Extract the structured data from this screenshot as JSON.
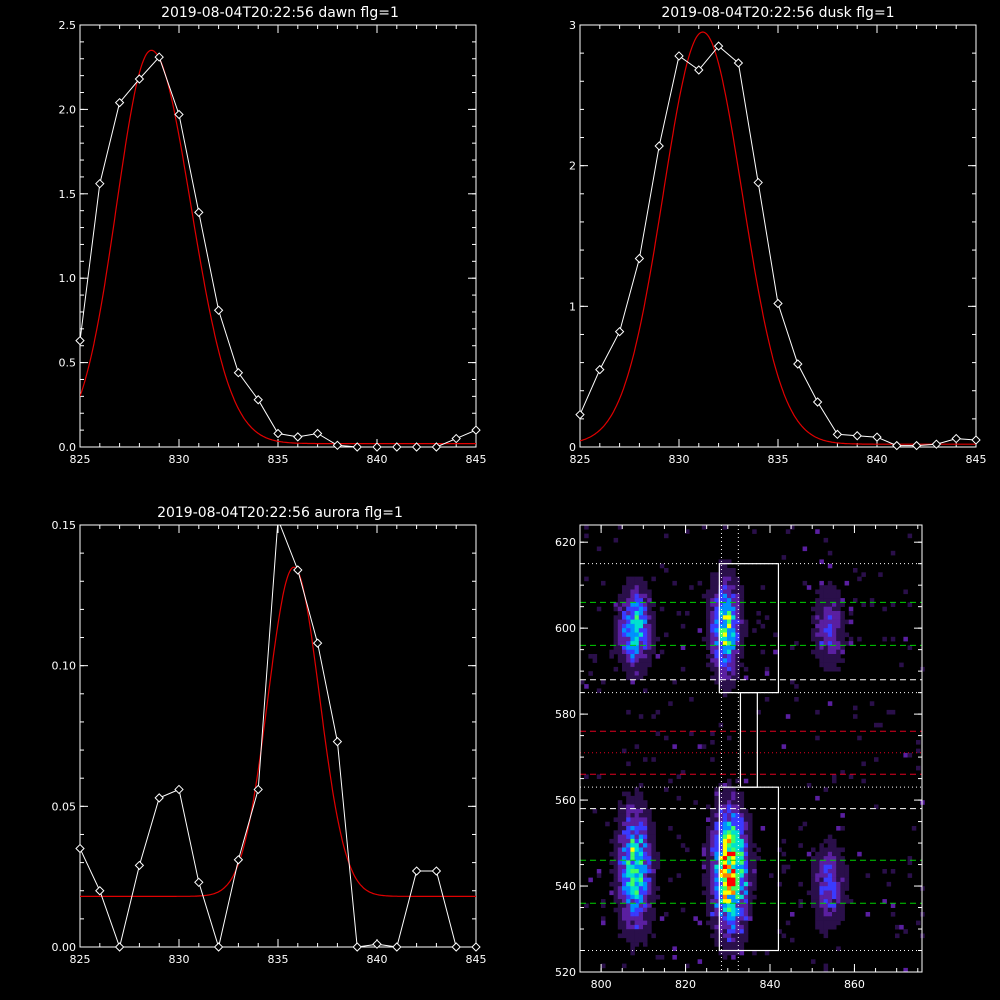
{
  "chart_data": [
    {
      "type": "line",
      "title": "2019-08-04T20:22:56 dawn flg=1",
      "xlim": [
        825,
        845
      ],
      "ylim": [
        0,
        2.5
      ],
      "xticks": [
        825,
        830,
        835,
        840,
        845
      ],
      "xtick_labels": [
        "825",
        "830",
        "835",
        "840",
        "845"
      ],
      "yticks": [
        0,
        0.5,
        1.0,
        1.5,
        2.0,
        2.5
      ],
      "ytick_labels": [
        "0.0",
        "0.5",
        "1.0",
        "1.5",
        "2.0",
        "2.5"
      ],
      "data_series": {
        "x": [
          825,
          826,
          827,
          828,
          829,
          830,
          831,
          832,
          833,
          834,
          835,
          836,
          837,
          838,
          839,
          840,
          841,
          842,
          843,
          844,
          845
        ],
        "y": [
          0.63,
          1.56,
          2.04,
          2.18,
          2.31,
          1.97,
          1.39,
          0.81,
          0.44,
          0.28,
          0.08,
          0.06,
          0.08,
          0.01,
          0.0,
          0.0,
          0.0,
          0.0,
          0.0,
          0.05,
          0.1
        ],
        "color": "#ffffff"
      },
      "fit": {
        "peak": 2.35,
        "center": 828.6,
        "sigma_left": 1.75,
        "sigma_right": 2.0,
        "baseline": 0.02,
        "color": "#e00000"
      }
    },
    {
      "type": "line",
      "title": "2019-08-04T20:22:56 dusk flg=1",
      "xlim": [
        825,
        845
      ],
      "ylim": [
        0,
        3
      ],
      "xticks": [
        825,
        830,
        835,
        840,
        845
      ],
      "xtick_labels": [
        "825",
        "830",
        "835",
        "840",
        "845"
      ],
      "yticks": [
        0,
        1,
        2,
        3
      ],
      "ytick_labels": [
        "0",
        "1",
        "2",
        "3"
      ],
      "data_series": {
        "x": [
          825,
          826,
          827,
          828,
          829,
          830,
          831,
          832,
          833,
          834,
          835,
          836,
          837,
          838,
          839,
          840,
          841,
          842,
          843,
          844,
          845
        ],
        "y": [
          0.23,
          0.55,
          0.82,
          1.34,
          2.14,
          2.78,
          2.68,
          2.85,
          2.73,
          1.88,
          1.02,
          0.59,
          0.32,
          0.09,
          0.08,
          0.07,
          0.01,
          0.01,
          0.02,
          0.06,
          0.05
        ],
        "color": "#ffffff"
      },
      "fit": {
        "peak": 2.95,
        "center": 831.2,
        "sigma_left": 2.0,
        "sigma_right": 2.0,
        "baseline": 0.02,
        "color": "#e00000"
      }
    },
    {
      "type": "line",
      "title": "2019-08-04T20:22:56 aurora flg=1",
      "xlim": [
        825,
        845
      ],
      "ylim": [
        0,
        0.15
      ],
      "xticks": [
        825,
        830,
        835,
        840,
        845
      ],
      "xtick_labels": [
        "825",
        "830",
        "835",
        "840",
        "845"
      ],
      "yticks": [
        0,
        0.05,
        0.1,
        0.15
      ],
      "ytick_labels": [
        "0.00",
        "0.05",
        "0.10",
        "0.15"
      ],
      "data_series": {
        "x": [
          825,
          826,
          827,
          828,
          829,
          830,
          831,
          832,
          833,
          834,
          835,
          836,
          837,
          838,
          839,
          840,
          841,
          842,
          843,
          844,
          845
        ],
        "y": [
          0.035,
          0.02,
          0.0,
          0.029,
          0.053,
          0.056,
          0.023,
          0.0,
          0.031,
          0.056,
          0.152,
          0.134,
          0.108,
          0.073,
          0.0,
          0.001,
          0.0,
          0.027,
          0.027,
          0.0,
          0.0
        ],
        "color": "#ffffff"
      },
      "fit": {
        "peak": 0.135,
        "center": 835.8,
        "sigma_left": 1.3,
        "sigma_right": 1.3,
        "baseline": 0.018,
        "color": "#e00000"
      }
    },
    {
      "type": "heatmap",
      "title": "",
      "xlim": [
        795,
        876
      ],
      "ylim": [
        520,
        624
      ],
      "xticks": [
        800,
        820,
        840,
        860
      ],
      "xtick_labels": [
        "800",
        "820",
        "840",
        "860"
      ],
      "yticks": [
        520,
        540,
        560,
        580,
        600,
        620
      ],
      "ytick_labels": [
        "520",
        "540",
        "560",
        "580",
        "600",
        "620"
      ],
      "colormap": [
        "#000000",
        "#2a0f4a",
        "#5a1fa0",
        "#3a3aff",
        "#0090ff",
        "#00e0d0",
        "#40ff60",
        "#ffff00",
        "#ff8000",
        "#ff0000"
      ],
      "emission_bands": [
        {
          "x": 808,
          "y": 600,
          "sigma_x": 2.4,
          "sigma_y": 6,
          "amp": 0.6
        },
        {
          "x": 808,
          "y": 544,
          "sigma_x": 2.6,
          "sigma_y": 9,
          "amp": 0.62
        },
        {
          "x": 829.5,
          "y": 600,
          "sigma_x": 2.2,
          "sigma_y": 7,
          "amp": 0.72
        },
        {
          "x": 830.5,
          "y": 544,
          "sigma_x": 2.6,
          "sigma_y": 9,
          "amp": 1.0
        },
        {
          "x": 854,
          "y": 600,
          "sigma_x": 2.5,
          "sigma_y": 6,
          "amp": 0.28
        },
        {
          "x": 854,
          "y": 540,
          "sigma_x": 2.5,
          "sigma_y": 6,
          "amp": 0.35
        }
      ],
      "boxes": [
        {
          "x1": 828,
          "x2": 842,
          "y1": 585,
          "y2": 615,
          "color": "#ffffff"
        },
        {
          "x1": 828,
          "x2": 842,
          "y1": 525,
          "y2": 563,
          "color": "#ffffff"
        },
        {
          "x1": 833,
          "x2": 837,
          "y1": 563,
          "y2": 585,
          "color": "#ffffff"
        }
      ],
      "hlines": [
        {
          "y": 615,
          "color": "#ffffff",
          "style": "dotted"
        },
        {
          "y": 606,
          "color": "#00d000",
          "style": "dashed"
        },
        {
          "y": 596,
          "color": "#00d000",
          "style": "dashed"
        },
        {
          "y": 588,
          "color": "#ffffff",
          "style": "dashed"
        },
        {
          "y": 585,
          "color": "#ffffff",
          "style": "dotted"
        },
        {
          "y": 576,
          "color": "#e00020",
          "style": "dashed"
        },
        {
          "y": 571,
          "color": "#e00020",
          "style": "dotted"
        },
        {
          "y": 566,
          "color": "#e00020",
          "style": "dashed"
        },
        {
          "y": 563,
          "color": "#ffffff",
          "style": "dotted"
        },
        {
          "y": 558,
          "color": "#ffffff",
          "style": "dashed"
        },
        {
          "y": 546,
          "color": "#00d000",
          "style": "dashed"
        },
        {
          "y": 536,
          "color": "#00d000",
          "style": "dashed"
        },
        {
          "y": 525,
          "color": "#ffffff",
          "style": "dotted"
        }
      ],
      "vlines": [
        {
          "x": 828.5,
          "color": "#ffffff",
          "style": "dotted"
        },
        {
          "x": 832.5,
          "color": "#ffffff",
          "style": "dotted"
        }
      ]
    }
  ]
}
